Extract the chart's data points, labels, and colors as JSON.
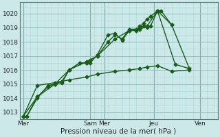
{
  "xlabel": "Pression niveau de la mer( hPa )",
  "background_color": "#cce8e8",
  "grid_color_major": "#88bbbb",
  "grid_color_minor": "#aadddd",
  "line_color": "#1a5c1a",
  "ylim": [
    1012.5,
    1020.8
  ],
  "xlim": [
    -0.5,
    27.5
  ],
  "series": [
    {
      "x": [
        0,
        0.5,
        2,
        3.5,
        4.5,
        5.5,
        6.5,
        8,
        9,
        9.5,
        10.5,
        12,
        13,
        14,
        15,
        16,
        16.5,
        17,
        17.5,
        18,
        19,
        19.5,
        21
      ],
      "y": [
        1012.7,
        1012.7,
        1014.1,
        1014.8,
        1015.0,
        1015.1,
        1016.0,
        1016.5,
        1016.5,
        1016.5,
        1017.1,
        1018.5,
        1018.6,
        1018.1,
        1018.8,
        1018.8,
        1019.0,
        1019.1,
        1019.0,
        1019.1,
        1020.2,
        1020.2,
        1019.2
      ],
      "marker": "D",
      "linewidth": 1.0,
      "markersize": 2.5
    },
    {
      "x": [
        0,
        0.5,
        2,
        3.5,
        4.5,
        5.5,
        6.5,
        8,
        9,
        9.5,
        10.5,
        12,
        13,
        14,
        15,
        16,
        16.5,
        17,
        17.5,
        18,
        19,
        21,
        23.5
      ],
      "y": [
        1012.7,
        1012.7,
        1014.0,
        1014.9,
        1015.0,
        1015.2,
        1016.0,
        1016.5,
        1016.5,
        1016.7,
        1017.0,
        1018.0,
        1018.5,
        1018.2,
        1018.9,
        1018.9,
        1019.1,
        1019.3,
        1019.6,
        1019.8,
        1020.2,
        1019.2,
        1016.1
      ],
      "marker": "D",
      "linewidth": 1.0,
      "markersize": 2.5
    },
    {
      "x": [
        0,
        2,
        4.5,
        6.5,
        9,
        10.5,
        13,
        15,
        16.5,
        17.5,
        19,
        21.5,
        23.5
      ],
      "y": [
        1012.7,
        1014.1,
        1015.0,
        1016.0,
        1016.6,
        1017.0,
        1018.2,
        1018.8,
        1018.9,
        1019.1,
        1020.2,
        1016.4,
        1016.1
      ],
      "marker": "D",
      "linewidth": 1.0,
      "markersize": 2.5
    },
    {
      "x": [
        0,
        2,
        4.5,
        6.5,
        9,
        10.5,
        13,
        15,
        16.5,
        17.5,
        19,
        21,
        23.5
      ],
      "y": [
        1012.7,
        1014.9,
        1015.1,
        1015.3,
        1015.5,
        1015.7,
        1015.9,
        1016.0,
        1016.1,
        1016.2,
        1016.3,
        1015.9,
        1016.0
      ],
      "marker": "D",
      "linewidth": 1.0,
      "markersize": 2.5
    }
  ],
  "day_ticks": [
    {
      "x": 0,
      "label": "Mar"
    },
    {
      "x": 9.5,
      "label": "Sam"
    },
    {
      "x": 11.5,
      "label": "Mer"
    },
    {
      "x": 18.5,
      "label": "Jeu"
    },
    {
      "x": 25,
      "label": "Ven"
    }
  ],
  "vlines": [
    0,
    9.5,
    11.5,
    18.5,
    25
  ],
  "yticks": [
    1013,
    1014,
    1015,
    1016,
    1017,
    1018,
    1019,
    1020
  ]
}
